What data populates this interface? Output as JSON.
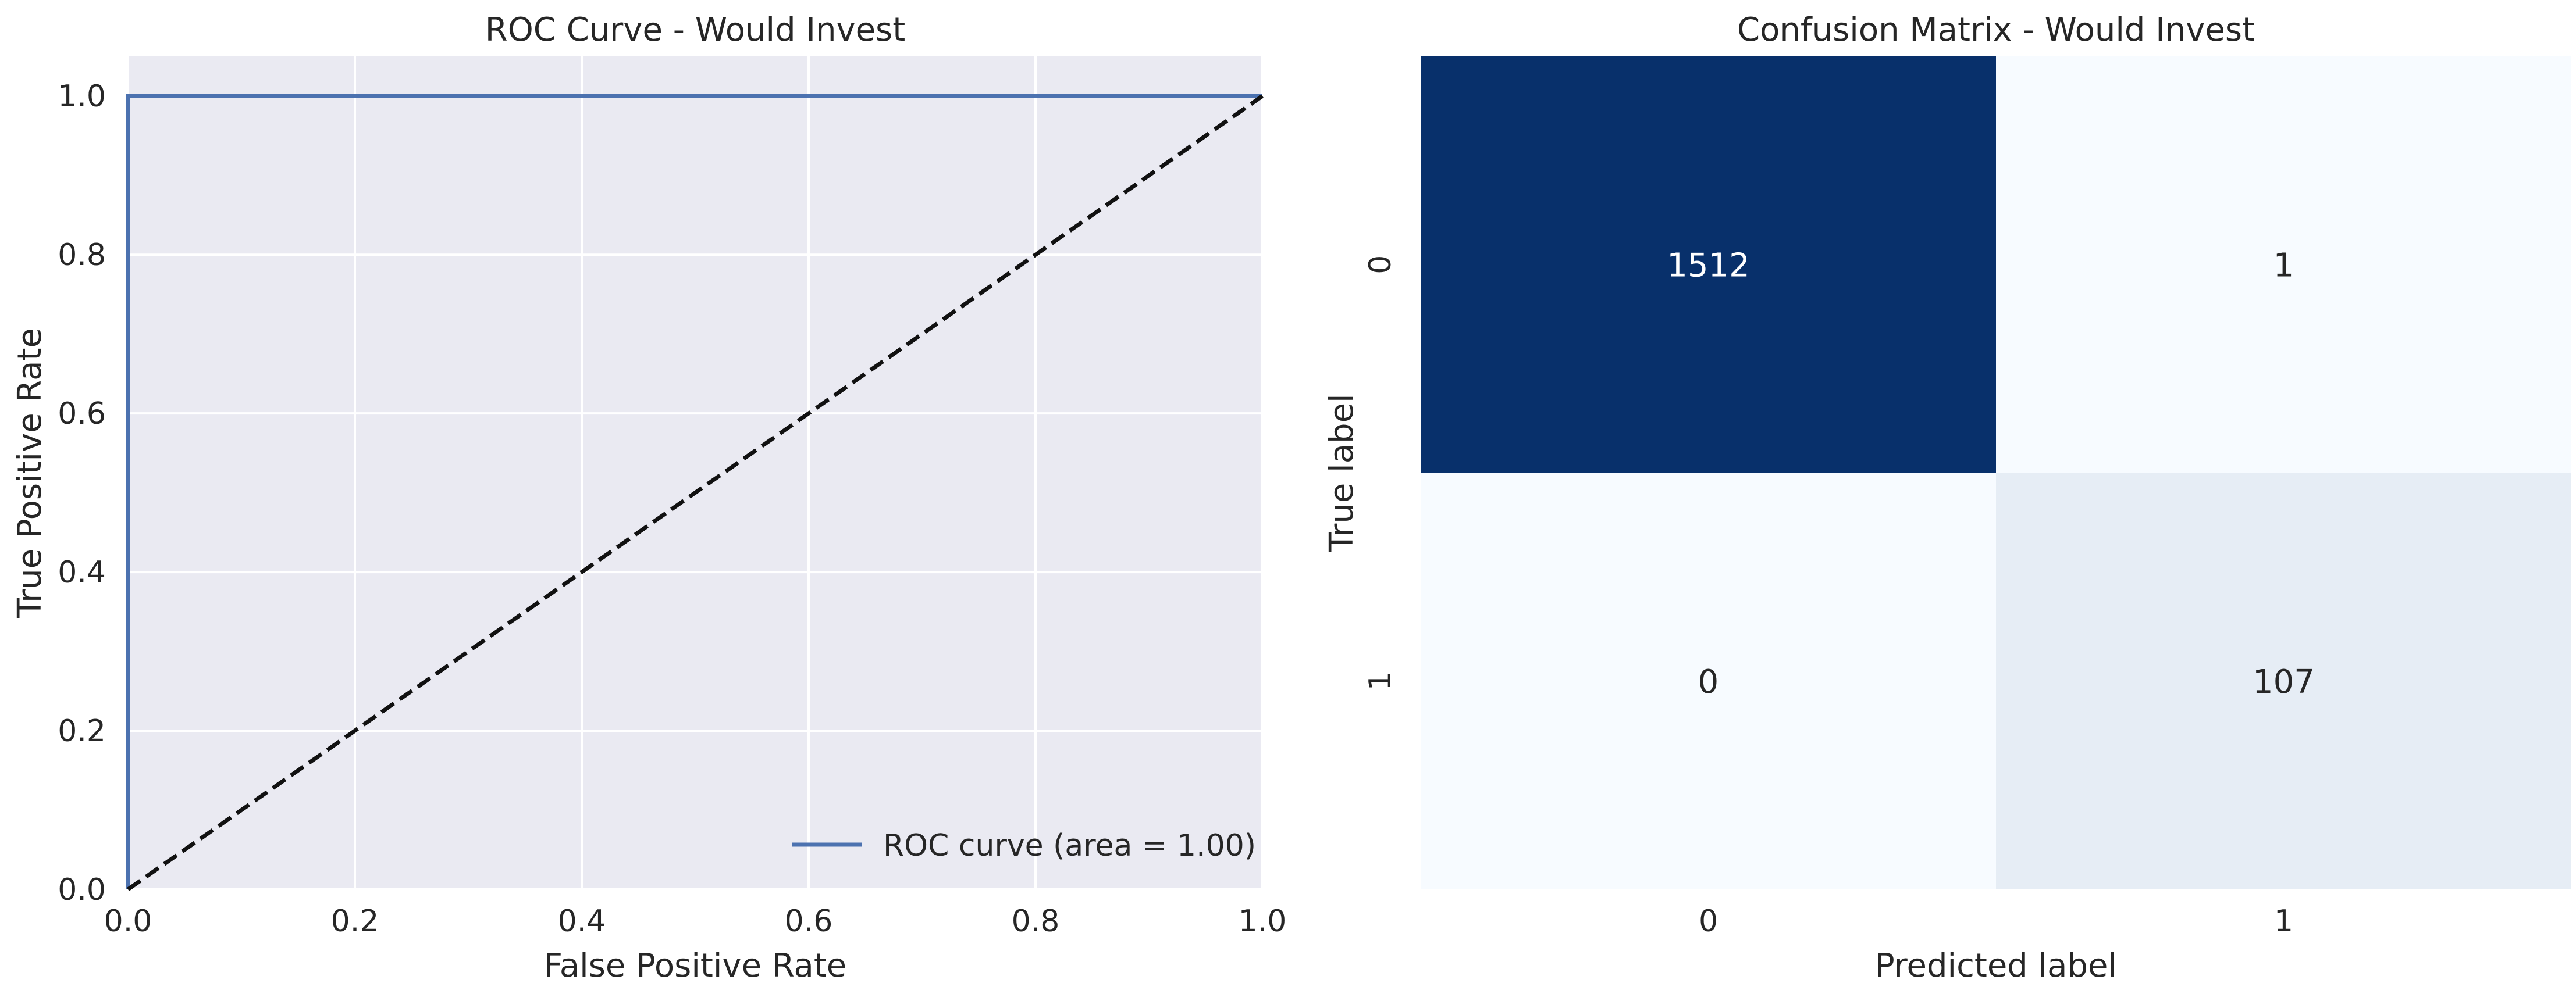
{
  "chart_data": [
    {
      "type": "line",
      "title": "ROC Curve - Would Invest",
      "xlabel": "False Positive Rate",
      "ylabel": "True Positive Rate",
      "xlim": [
        0.0,
        1.0
      ],
      "ylim": [
        0.0,
        1.05
      ],
      "xticks": [
        "0.0",
        "0.2",
        "0.4",
        "0.6",
        "0.8",
        "1.0"
      ],
      "yticks": [
        "0.0",
        "0.2",
        "0.4",
        "0.6",
        "0.8",
        "1.0"
      ],
      "grid": true,
      "legend_position": "lower-right",
      "series": [
        {
          "name": "ROC curve (area = 1.00)",
          "color": "#4c72b0",
          "style": "solid",
          "x": [
            0.0,
            0.0,
            1.0
          ],
          "y": [
            0.0,
            1.0,
            1.0
          ]
        },
        {
          "color": "#111111",
          "style": "dashed",
          "x": [
            0.0,
            1.0
          ],
          "y": [
            0.0,
            1.0
          ]
        }
      ]
    },
    {
      "type": "heatmap",
      "title": "Confusion Matrix - Would Invest",
      "xlabel": "Predicted label",
      "ylabel": "True label",
      "x_categories": [
        "0",
        "1"
      ],
      "y_categories": [
        "0",
        "1"
      ],
      "values": [
        [
          1512,
          1
        ],
        [
          0,
          107
        ]
      ],
      "colormap": "Blues",
      "color_low": "#f7fbff",
      "color_high": "#08306b",
      "text_color_on_dark": "#ffffff",
      "text_color_on_light": "#262626"
    }
  ]
}
